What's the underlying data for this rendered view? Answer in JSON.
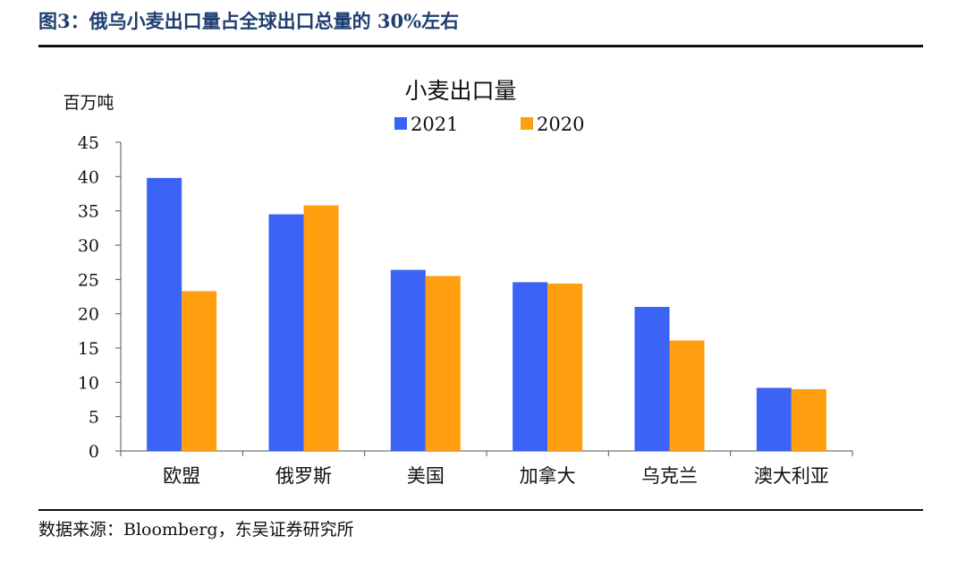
{
  "figure": {
    "title": "图3：俄乌小麦出口量占全球出口总量的 30%左右",
    "source": "数据来源：Bloomberg，东吴证券研究所"
  },
  "chart_data": {
    "type": "bar",
    "title": "小麦出口量",
    "ylabel": "百万吨",
    "xlabel": "",
    "ylim": [
      0,
      45
    ],
    "yticks": [
      0,
      5,
      10,
      15,
      20,
      25,
      30,
      35,
      40,
      45
    ],
    "grid": false,
    "legend_position": "top-center",
    "categories": [
      "欧盟",
      "俄罗斯",
      "美国",
      "加拿大",
      "乌克兰",
      "澳大利亚"
    ],
    "series": [
      {
        "name": "2021",
        "color": "#3b63f5",
        "values": [
          39.8,
          34.5,
          26.4,
          24.6,
          21.0,
          9.2
        ]
      },
      {
        "name": "2020",
        "color": "#ff9e0f",
        "values": [
          23.3,
          35.8,
          25.5,
          24.4,
          16.1,
          9.0
        ]
      }
    ]
  }
}
